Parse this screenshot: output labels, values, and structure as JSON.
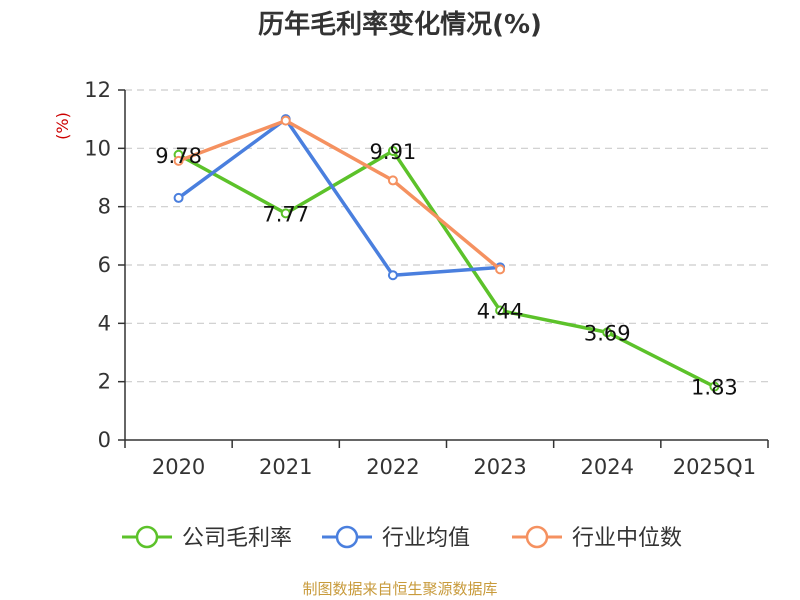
{
  "chart_data": {
    "type": "line",
    "title": "历年毛利率变化情况(%)",
    "ylabel": "(%)",
    "xlabel": "",
    "categories": [
      "2020",
      "2021",
      "2022",
      "2023",
      "2024",
      "2025Q1"
    ],
    "ylim": [
      0,
      12
    ],
    "yticks": [
      0,
      2,
      4,
      6,
      8,
      10,
      12
    ],
    "grid": true,
    "legend_position": "bottom",
    "series": [
      {
        "name": "公司毛利率",
        "color": "#5cc22a",
        "values": [
          9.78,
          7.77,
          9.91,
          4.44,
          3.69,
          1.83
        ],
        "labels": [
          "9.78",
          "7.77",
          "9.91",
          "4.44",
          "3.69",
          "1.83"
        ]
      },
      {
        "name": "行业均值",
        "color": "#4a7fde",
        "values": [
          8.3,
          11.0,
          5.65,
          5.92,
          null,
          null
        ]
      },
      {
        "name": "行业中位数",
        "color": "#f59160",
        "values": [
          9.57,
          10.95,
          8.9,
          5.85,
          null,
          null
        ]
      }
    ]
  },
  "source_text": "制图数据来自恒生聚源数据库",
  "colors": {
    "unit": "#cc0000",
    "source": "#c89b3c",
    "axis": "#333333",
    "grid": "#cccccc"
  }
}
